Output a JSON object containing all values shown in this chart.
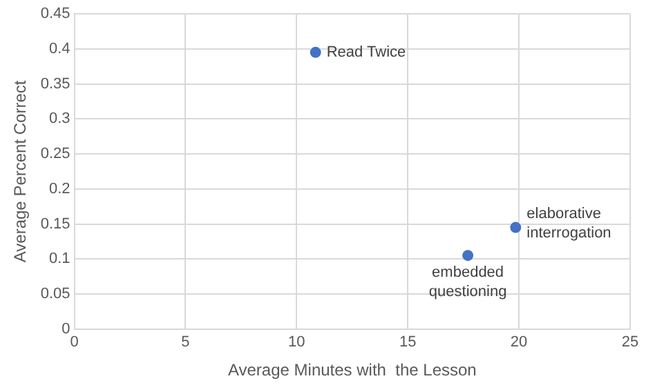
{
  "chart_data": {
    "type": "scatter",
    "xlabel": "Average Minutes with  the Lesson",
    "ylabel": "Average Percent Correct",
    "x": [
      10.85,
      19.85,
      17.7
    ],
    "series": [
      {
        "color": "#4472c4",
        "values": [
          0.395,
          0.145,
          0.105
        ]
      }
    ],
    "xlim": [
      0,
      25
    ],
    "xticks": [
      0,
      5,
      10,
      15,
      20,
      25
    ],
    "ylim": [
      0,
      0.45
    ],
    "yticks": [
      0,
      0.05,
      0.1,
      0.15,
      0.2,
      0.25,
      0.3,
      0.35,
      0.4,
      0.45
    ],
    "grid": true,
    "legend": false,
    "marker": "circle",
    "annotations": [
      {
        "text": "Read Twice",
        "x": 10.85,
        "y": 0.395
      },
      {
        "text": "elaborative\ninterrogation",
        "x": 19.85,
        "y": 0.145
      },
      {
        "text": "embedded\nquestioning",
        "x": 17.7,
        "y": 0.105
      }
    ]
  }
}
